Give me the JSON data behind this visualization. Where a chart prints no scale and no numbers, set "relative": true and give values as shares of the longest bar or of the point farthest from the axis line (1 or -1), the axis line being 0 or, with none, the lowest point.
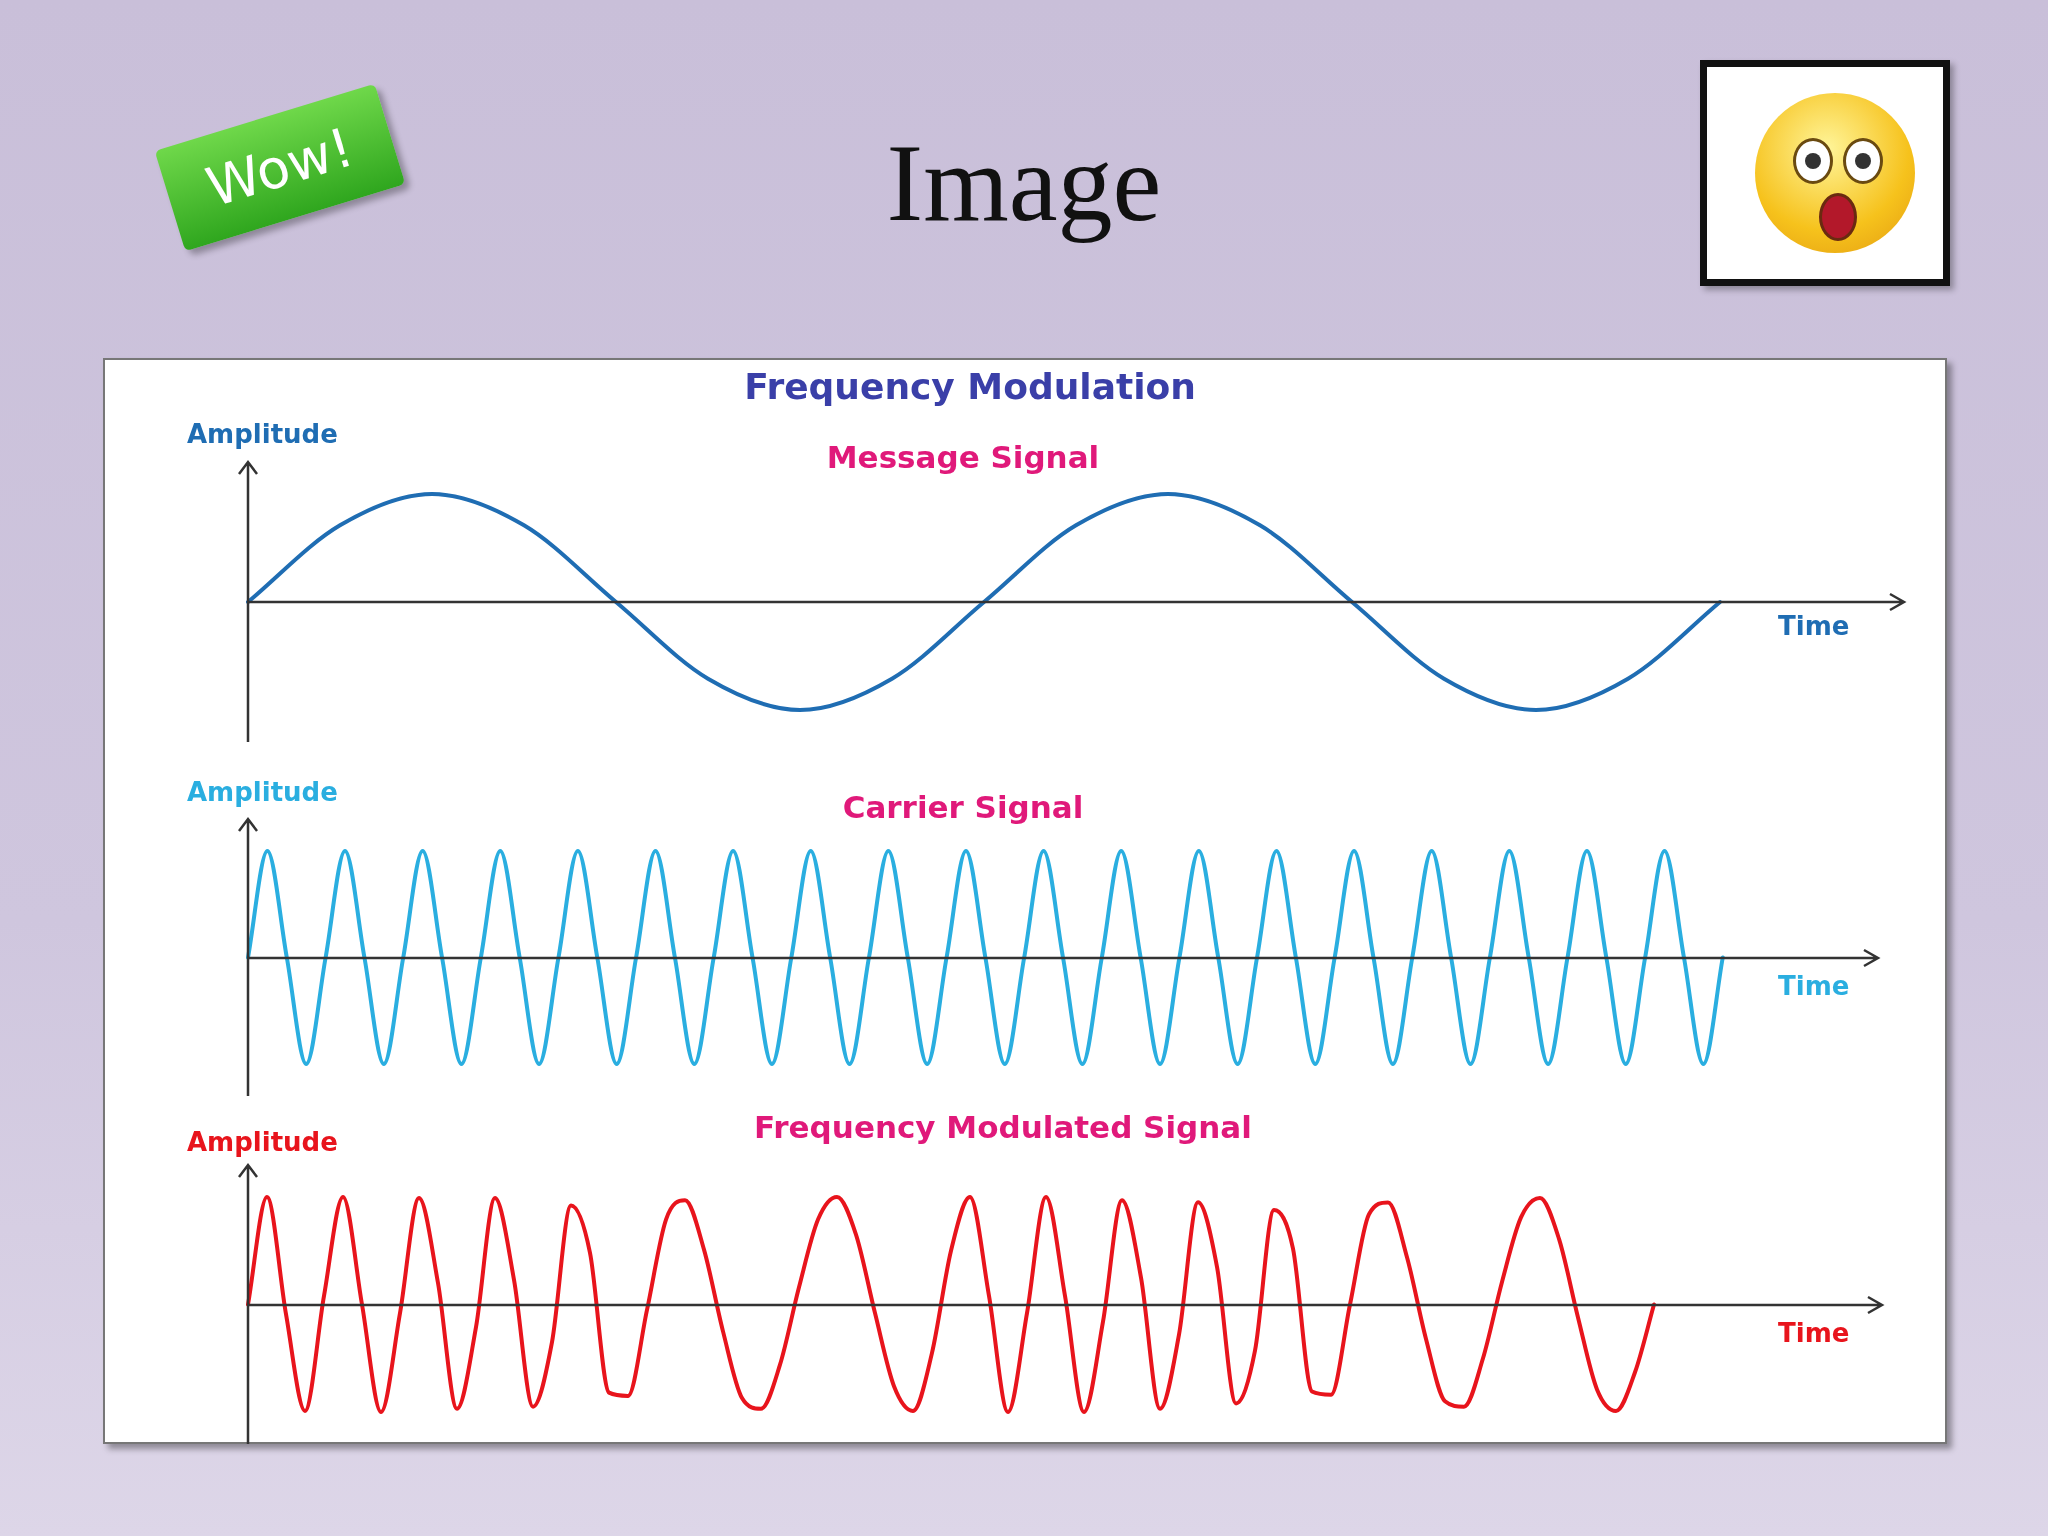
{
  "chart_data": [
    {
      "type": "other",
      "title": "Image",
      "annotations": [
        "Wow!"
      ]
    },
    {
      "type": "line",
      "title": "Frequency Modulation",
      "subtitle": "Message Signal",
      "xlabel": "Time",
      "ylabel": "Amplitude",
      "relative": true,
      "color": "#1f6db3",
      "categories": [
        null,
        null,
        null,
        null,
        null,
        null,
        null,
        null,
        null,
        null,
        null,
        null,
        null,
        null,
        null,
        null,
        null,
        null,
        null
      ],
      "values": [
        0,
        0.71,
        1,
        0.71,
        0,
        -0.71,
        -1,
        -0.71,
        0,
        0.71,
        1,
        0.71,
        0,
        -0.71,
        -1,
        -0.71,
        0,
        null,
        null
      ]
    },
    {
      "type": "line",
      "subtitle": "Carrier Signal",
      "xlabel": "Time",
      "ylabel": "Amplitude",
      "relative": true,
      "color": "#2aaee0",
      "categories": [
        null,
        null,
        null,
        null,
        null,
        null,
        null,
        null,
        null,
        null,
        null,
        null,
        null,
        null,
        null,
        null,
        null,
        null,
        null,
        null,
        null,
        null,
        null,
        null,
        null,
        null,
        null,
        null,
        null,
        null,
        null,
        null,
        null,
        null,
        null,
        null,
        null,
        null,
        null,
        null,
        null,
        null,
        null,
        null,
        null,
        null,
        null,
        null,
        null,
        null,
        null,
        null,
        null,
        null,
        null,
        null,
        null,
        null,
        null,
        null,
        null,
        null,
        null,
        null,
        null,
        null,
        null,
        null,
        null,
        null,
        null,
        null,
        null,
        null,
        null,
        null,
        null,
        null,
        null,
        null,
        null,
        null,
        null,
        null,
        null
      ],
      "values": [
        0,
        1,
        0,
        -1,
        0,
        1,
        0,
        -1,
        0,
        1,
        0,
        -1,
        0,
        1,
        0,
        -1,
        0,
        1,
        0,
        -1,
        0,
        1,
        0,
        -1,
        0,
        1,
        0,
        -1,
        0,
        1,
        0,
        -1,
        0,
        1,
        0,
        -1,
        0,
        1,
        0,
        -1,
        0,
        1,
        0,
        -1,
        0,
        1,
        0,
        -1,
        0,
        1,
        0,
        -1,
        0,
        1,
        0,
        -1,
        0,
        1,
        0,
        -1,
        0,
        1,
        0,
        -1,
        0,
        1,
        0,
        -1,
        0,
        1,
        0,
        -1,
        0,
        1,
        0,
        -1,
        0,
        null,
        null,
        null,
        null,
        null,
        null,
        null,
        null
      ]
    },
    {
      "type": "line",
      "subtitle": "Frequency Modulated Signal",
      "xlabel": "Time",
      "ylabel": "Amplitude",
      "relative": true,
      "color": "#e8141c",
      "categories": [
        null,
        null,
        null,
        null,
        null,
        null,
        null,
        null,
        null,
        null,
        null,
        null,
        null,
        null,
        null,
        null,
        null,
        null,
        null,
        null,
        null,
        null,
        null,
        null,
        null,
        null,
        null,
        null,
        null,
        null,
        null,
        null,
        null,
        null,
        null,
        null,
        null,
        null,
        null,
        null,
        null,
        null,
        null,
        null,
        null,
        null,
        null,
        null,
        null,
        null,
        null,
        null,
        null,
        null,
        null,
        null,
        null,
        null,
        null,
        null,
        null,
        null,
        null,
        null,
        null,
        null,
        null,
        null,
        null,
        null,
        null,
        null,
        null,
        null,
        null,
        null,
        null,
        null,
        null,
        null,
        null,
        null,
        null,
        null,
        null,
        null,
        null
      ],
      "values": [
        0,
        1,
        -0.09,
        -0.99,
        0.08,
        1,
        0,
        -1,
        -0.08,
        0.99,
        0.2,
        -0.97,
        -0.21,
        0.99,
        0.23,
        -0.95,
        -0.35,
        0.92,
        0.48,
        -0.82,
        -0.85,
        -0.05,
        0.79,
        0.97,
        0.51,
        -0.25,
        -0.87,
        -0.97,
        -0.56,
        0.16,
        0.79,
        1,
        0.65,
        -0.08,
        -0.76,
        -0.99,
        -0.45,
        0.5,
        1,
        0.08,
        -1,
        -0.08,
        1,
        0.08,
        -1,
        -0.16,
        0.97,
        0.25,
        -0.97,
        -0.28,
        0.95,
        0.35,
        -0.92,
        -0.43,
        0.88,
        0.52,
        -0.81,
        -0.84,
        0,
        0.84,
        0.95,
        0.44,
        -0.32,
        -0.9,
        -0.95,
        -0.5,
        0.21,
        0.81,
        0.99,
        0.61,
        -0.12,
        -0.79,
        -0.99,
        -0.63,
        0,
        null,
        null,
        null,
        null,
        null,
        null,
        null,
        null,
        null,
        null,
        null,
        null
      ]
    }
  ]
}
